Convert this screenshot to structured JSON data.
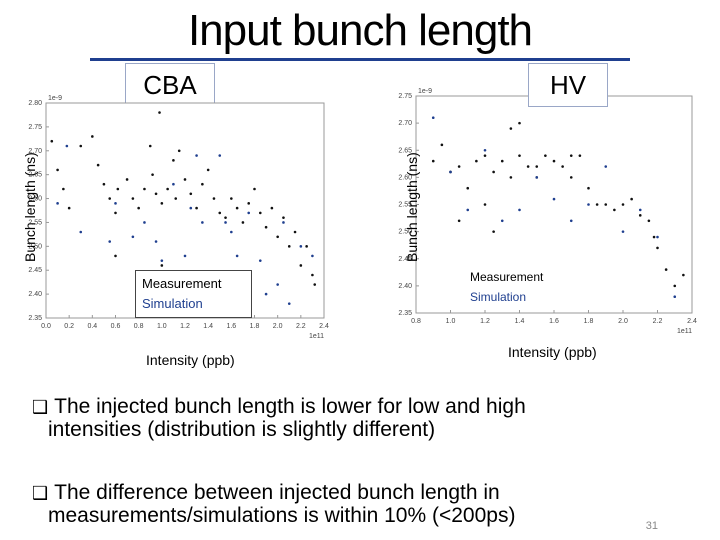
{
  "slide": {
    "title": "Input bunch length",
    "page_number": "31",
    "bullets": [
      {
        "icon": "checkbox-bullet-icon",
        "text": "The injected bunch length is lower for low and high",
        "cont": "intensities (distribution is slightly different)"
      },
      {
        "icon": "checkbox-bullet-icon",
        "text": "The difference between injected bunch length in",
        "cont": "measurements/simulations is within 10% (<200ps)"
      }
    ],
    "colors": {
      "rule": "#1f3f8f",
      "simulation": "#1f3f8f",
      "measurement": "#111111"
    }
  },
  "chart_data": [
    {
      "type": "scatter",
      "panel_label": "CBA",
      "ylabel": "Bunch length (ns)",
      "xlabel": "Intensity (ppb)",
      "y_multiplier": "1e-9",
      "x_multiplier": "1e11",
      "xlim": [
        0.0,
        2.4
      ],
      "ylim": [
        2.35,
        2.8
      ],
      "xticks": [
        "0.0",
        "0.2",
        "0.4",
        "0.6",
        "0.8",
        "1.0",
        "1.2",
        "1.4",
        "1.6",
        "1.8",
        "2.0",
        "2.2",
        "2.4"
      ],
      "yticks": [
        "2.35",
        "2.40",
        "2.45",
        "2.50",
        "2.55",
        "2.60",
        "2.65",
        "2.70",
        "2.75",
        "2.80"
      ],
      "legend": [
        "Measurement",
        "Simulation"
      ],
      "series": [
        {
          "name": "Measurement",
          "points": [
            [
              0.05,
              2.72
            ],
            [
              0.1,
              2.66
            ],
            [
              0.15,
              2.62
            ],
            [
              0.2,
              2.58
            ],
            [
              0.3,
              2.71
            ],
            [
              0.4,
              2.73
            ],
            [
              0.45,
              2.67
            ],
            [
              0.5,
              2.63
            ],
            [
              0.55,
              2.6
            ],
            [
              0.6,
              2.57
            ],
            [
              0.62,
              2.62
            ],
            [
              0.7,
              2.64
            ],
            [
              0.75,
              2.6
            ],
            [
              0.8,
              2.58
            ],
            [
              0.85,
              2.62
            ],
            [
              0.9,
              2.71
            ],
            [
              0.92,
              2.65
            ],
            [
              0.95,
              2.61
            ],
            [
              1.0,
              2.59
            ],
            [
              1.05,
              2.62
            ],
            [
              1.1,
              2.68
            ],
            [
              1.12,
              2.6
            ],
            [
              1.15,
              2.7
            ],
            [
              1.2,
              2.64
            ],
            [
              1.25,
              2.61
            ],
            [
              1.3,
              2.58
            ],
            [
              1.35,
              2.63
            ],
            [
              1.4,
              2.66
            ],
            [
              1.45,
              2.6
            ],
            [
              1.5,
              2.57
            ],
            [
              1.55,
              2.56
            ],
            [
              1.6,
              2.6
            ],
            [
              1.65,
              2.58
            ],
            [
              1.7,
              2.55
            ],
            [
              1.75,
              2.59
            ],
            [
              1.8,
              2.62
            ],
            [
              1.85,
              2.57
            ],
            [
              1.9,
              2.54
            ],
            [
              1.95,
              2.58
            ],
            [
              2.0,
              2.52
            ],
            [
              2.05,
              2.56
            ],
            [
              2.1,
              2.5
            ],
            [
              2.15,
              2.53
            ],
            [
              2.2,
              2.46
            ],
            [
              2.25,
              2.5
            ],
            [
              2.3,
              2.44
            ],
            [
              2.32,
              2.42
            ],
            [
              1.0,
              2.46
            ],
            [
              0.6,
              2.48
            ],
            [
              0.98,
              2.78
            ]
          ]
        },
        {
          "name": "Simulation",
          "points": [
            [
              0.1,
              2.59
            ],
            [
              0.18,
              2.71
            ],
            [
              0.3,
              2.53
            ],
            [
              0.55,
              2.51
            ],
            [
              0.6,
              2.59
            ],
            [
              0.75,
              2.52
            ],
            [
              0.85,
              2.55
            ],
            [
              0.95,
              2.51
            ],
            [
              1.0,
              2.47
            ],
            [
              1.1,
              2.63
            ],
            [
              1.2,
              2.48
            ],
            [
              1.25,
              2.58
            ],
            [
              1.3,
              2.69
            ],
            [
              1.35,
              2.55
            ],
            [
              1.5,
              2.69
            ],
            [
              1.55,
              2.55
            ],
            [
              1.6,
              2.53
            ],
            [
              1.65,
              2.48
            ],
            [
              1.75,
              2.57
            ],
            [
              1.85,
              2.47
            ],
            [
              1.9,
              2.4
            ],
            [
              2.0,
              2.42
            ],
            [
              2.05,
              2.55
            ],
            [
              2.1,
              2.38
            ],
            [
              2.2,
              2.5
            ],
            [
              2.3,
              2.48
            ]
          ]
        }
      ]
    },
    {
      "type": "scatter",
      "panel_label": "HV",
      "ylabel": "Bunch length (ns)",
      "xlabel": "Intensity (ppb)",
      "y_multiplier": "1e-9",
      "x_multiplier": "1e11",
      "xlim": [
        0.8,
        2.4
      ],
      "ylim": [
        2.35,
        2.75
      ],
      "xticks": [
        "0.8",
        "1.0",
        "1.2",
        "1.4",
        "1.6",
        "1.8",
        "2.0",
        "2.2",
        "2.4"
      ],
      "yticks": [
        "2.35",
        "2.40",
        "2.45",
        "2.50",
        "2.55",
        "2.60",
        "2.65",
        "2.70",
        "2.75"
      ],
      "legend": [
        "Measurement",
        "Simulation"
      ],
      "series": [
        {
          "name": "Measurement",
          "points": [
            [
              0.9,
              2.63
            ],
            [
              0.95,
              2.66
            ],
            [
              1.0,
              2.61
            ],
            [
              1.05,
              2.62
            ],
            [
              1.1,
              2.58
            ],
            [
              1.15,
              2.63
            ],
            [
              1.2,
              2.64
            ],
            [
              1.25,
              2.61
            ],
            [
              1.3,
              2.63
            ],
            [
              1.35,
              2.6
            ],
            [
              1.35,
              2.69
            ],
            [
              1.4,
              2.64
            ],
            [
              1.45,
              2.62
            ],
            [
              1.5,
              2.6
            ],
            [
              1.55,
              2.64
            ],
            [
              1.6,
              2.63
            ],
            [
              1.65,
              2.62
            ],
            [
              1.7,
              2.6
            ],
            [
              1.75,
              2.64
            ],
            [
              1.8,
              2.58
            ],
            [
              1.85,
              2.55
            ],
            [
              1.9,
              2.55
            ],
            [
              1.95,
              2.54
            ],
            [
              2.0,
              2.55
            ],
            [
              2.05,
              2.56
            ],
            [
              2.1,
              2.53
            ],
            [
              2.15,
              2.52
            ],
            [
              2.18,
              2.49
            ],
            [
              2.2,
              2.47
            ],
            [
              2.25,
              2.43
            ],
            [
              2.3,
              2.4
            ],
            [
              2.35,
              2.42
            ],
            [
              1.05,
              2.52
            ],
            [
              1.2,
              2.55
            ],
            [
              1.25,
              2.5
            ],
            [
              1.4,
              2.7
            ],
            [
              1.5,
              2.62
            ],
            [
              1.7,
              2.64
            ]
          ]
        },
        {
          "name": "Simulation",
          "points": [
            [
              0.9,
              2.71
            ],
            [
              1.0,
              2.61
            ],
            [
              1.1,
              2.54
            ],
            [
              1.2,
              2.65
            ],
            [
              1.3,
              2.52
            ],
            [
              1.4,
              2.54
            ],
            [
              1.5,
              2.6
            ],
            [
              1.6,
              2.56
            ],
            [
              1.7,
              2.52
            ],
            [
              1.8,
              2.55
            ],
            [
              1.9,
              2.62
            ],
            [
              2.0,
              2.5
            ],
            [
              2.1,
              2.54
            ],
            [
              2.2,
              2.49
            ],
            [
              2.3,
              2.38
            ]
          ]
        }
      ]
    }
  ]
}
